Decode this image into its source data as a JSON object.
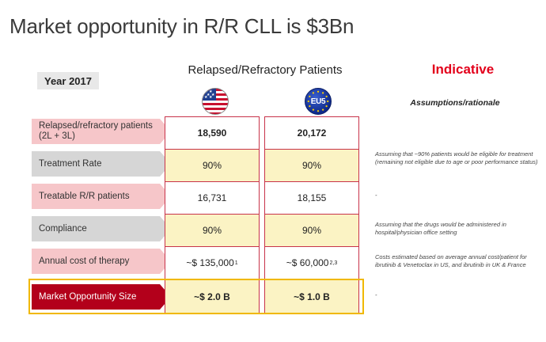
{
  "title": "Market opportunity in R/R CLL is $3Bn",
  "year_label": "Year 2017",
  "column_header": "Relapsed/Refractory Patients",
  "indicative": "Indicative",
  "assumptions_header": "Assumptions/rationale",
  "flags": {
    "us": "us-flag-icon",
    "eu": "EU5"
  },
  "colors": {
    "accent_red": "#e3001b",
    "label_pink": "#f6c6c9",
    "label_gray": "#d6d6d6",
    "label_dark_red": "#b3001b",
    "cell_yellow": "#fbf3c4",
    "highlight_border": "#f0b800"
  },
  "rows": [
    {
      "label": "Relapsed/refractory patients (2L + 3L)",
      "us": "18,590",
      "eu": "20,172",
      "note": "Assuming that ~90% patients would be eligible for treatment  (remaining not eligible due to age or poor performance status)"
    },
    {
      "label": "Treatment Rate",
      "us": "90%",
      "eu": "90%",
      "note": ""
    },
    {
      "label": "Treatable R/R patients",
      "us": "16,731",
      "eu": "18,155",
      "note": "-"
    },
    {
      "label": "Compliance",
      "us": "90%",
      "eu": "90%",
      "note": "Assuming that the drugs would be administered in hospital/physician office setting"
    },
    {
      "label": "Annual  cost of therapy",
      "us": "~$ 135,000",
      "us_sup": "1",
      "eu": "~$ 60,000",
      "eu_sup": "2,3",
      "note": "Costs estimated  based  on  average  annual cost/patient  for ibrutinib & Venetoclax  in US, and ibrutinib in UK & France"
    },
    {
      "label": "Market Opportunity  Size",
      "us": "~$  2.0 B",
      "eu": "~$  1.0 B",
      "note": "-"
    }
  ]
}
